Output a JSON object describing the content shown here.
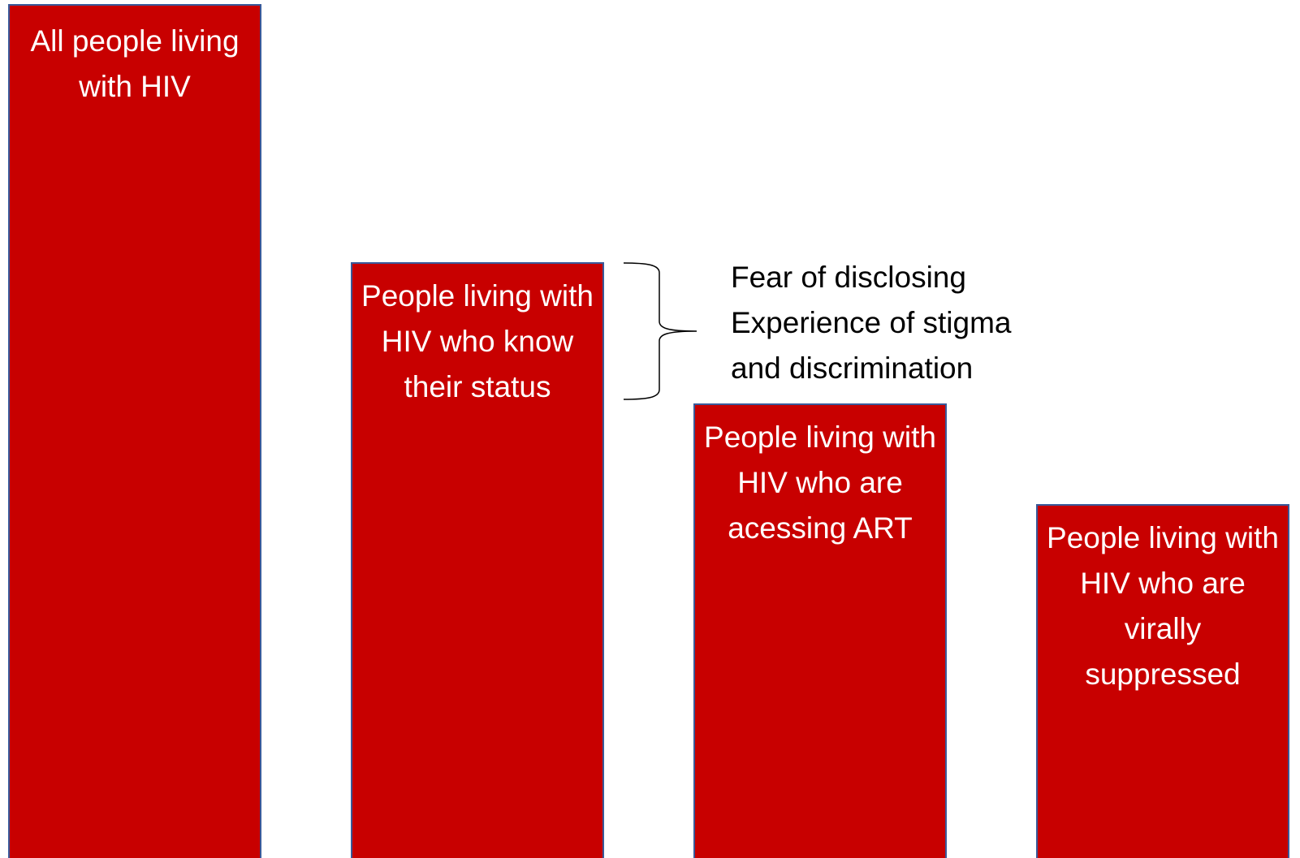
{
  "bars": [
    {
      "label": "All people living with HIV"
    },
    {
      "label": "People living with HIV who know their status"
    },
    {
      "label": "People living with HIV who are acessing ART"
    },
    {
      "label": "People living with HIV who are virally suppressed"
    }
  ],
  "annotation": {
    "lines": [
      "Fear of disclosing",
      "Experience of stigma",
      "and discrimination"
    ]
  },
  "colors": {
    "bar_fill": "#c80000",
    "bar_border": "#3a5a9a",
    "bar_text": "#ffffff",
    "annotation_text": "#000000"
  }
}
